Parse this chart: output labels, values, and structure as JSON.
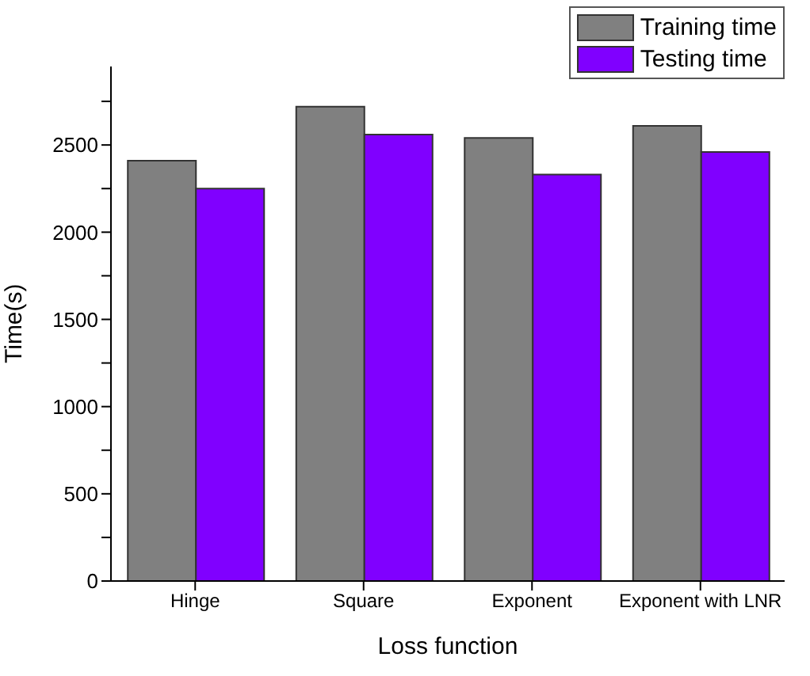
{
  "chart_data": {
    "type": "bar",
    "xlabel": "Loss function",
    "ylabel": "Time(s)",
    "categories": [
      "Hinge",
      "Square",
      "Exponent",
      "Exponent with LNR"
    ],
    "series": [
      {
        "name": "Training time",
        "color": "#808080",
        "values": [
          2410,
          2720,
          2540,
          2610
        ]
      },
      {
        "name": "Testing time",
        "color": "#8000ff",
        "values": [
          2250,
          2560,
          2330,
          2460
        ]
      }
    ],
    "ylim": [
      0,
      2950
    ],
    "yticks": [
      0,
      {
        "value": 250,
        "label": null
      },
      500,
      {
        "value": 750,
        "label": null
      },
      1000,
      {
        "value": 1250,
        "label": null
      },
      1500,
      {
        "value": 1750,
        "label": null
      },
      2000,
      {
        "value": 2250,
        "label": null
      },
      2500,
      {
        "value": 2750,
        "label": null
      }
    ],
    "grid": false,
    "legend": "top right"
  }
}
